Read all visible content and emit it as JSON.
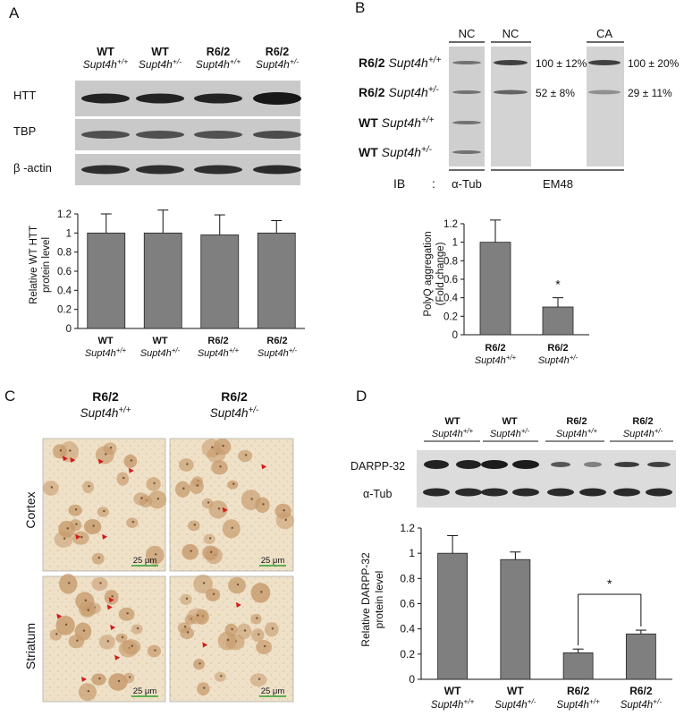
{
  "panel_A": {
    "letter": "A",
    "genotypes": [
      {
        "line": "WT",
        "supt": "Supt4h",
        "sup": "+/+"
      },
      {
        "line": "WT",
        "supt": "Supt4h",
        "sup": "+/-"
      },
      {
        "line": "R6/2",
        "supt": "Supt4h",
        "sup": "+/+"
      },
      {
        "line": "R6/2",
        "supt": "Supt4h",
        "sup": "+/-"
      }
    ],
    "blot_labels": [
      "HTT",
      "TBP",
      "β -actin"
    ],
    "ylabel_1": "Relative WT HTT",
    "ylabel_2": "protein level"
  },
  "panel_B": {
    "letter": "B",
    "lane_headers": [
      "NC",
      "NC",
      "CA"
    ],
    "rows": [
      {
        "line": "R6/2",
        "supt": "Supt4h",
        "sup": "+/+",
        "nc_val": "100 ± 12%",
        "ca_val": "100 ± 20%"
      },
      {
        "line": "R6/2",
        "supt": "Supt4h",
        "sup": "+/-",
        "nc_val": "52 ± 8%",
        "ca_val": "29 ± 11%"
      },
      {
        "line": "WT",
        "supt": "Supt4h",
        "sup": "+/+",
        "nc_val": "",
        "ca_val": ""
      },
      {
        "line": "WT",
        "supt": "Supt4h",
        "sup": "+/-",
        "nc_val": "",
        "ca_val": ""
      }
    ],
    "ib_label": "IB",
    "ib_colon": ":",
    "ib_tub": "α-Tub",
    "ib_em48": "EM48",
    "ylabel_1": "PolyQ aggregation",
    "ylabel_2": "(Fold change)",
    "star": "*"
  },
  "panel_C": {
    "letter": "C",
    "columns": [
      {
        "line": "R6/2",
        "supt": "Supt4h",
        "sup": "+/+"
      },
      {
        "line": "R6/2",
        "supt": "Supt4h",
        "sup": "+/-"
      }
    ],
    "row_labels": [
      "Cortex",
      "Striatum"
    ],
    "scale_label": "25 μm"
  },
  "panel_D": {
    "letter": "D",
    "genotypes": [
      {
        "line": "WT",
        "supt": "Supt4h",
        "sup": "+/+"
      },
      {
        "line": "WT",
        "supt": "Supt4h",
        "sup": "+/-"
      },
      {
        "line": "R6/2",
        "supt": "Supt4h",
        "sup": "+/+"
      },
      {
        "line": "R6/2",
        "supt": "Supt4h",
        "sup": "+/-"
      }
    ],
    "blot_labels": [
      "DARPP-32",
      "α-Tub"
    ],
    "ylabel_1": "Relative DARPP-32",
    "ylabel_2": "protein level",
    "star": "*"
  },
  "chart_data": [
    {
      "id": "A",
      "type": "bar",
      "categories": [
        "WT Supt4h+/+",
        "WT Supt4h+/-",
        "R6/2 Supt4h+/+",
        "R6/2 Supt4h+/-"
      ],
      "values": [
        1.0,
        1.0,
        0.98,
        1.0
      ],
      "errors": [
        0.2,
        0.24,
        0.21,
        0.13
      ],
      "ylim": [
        0,
        1.2
      ],
      "yticks": [
        0,
        0.2,
        0.4,
        0.6,
        0.8,
        1,
        1.2
      ],
      "ylabel": "Relative WT HTT protein level",
      "color": "#7f7f7f",
      "grid": false
    },
    {
      "id": "B",
      "type": "bar",
      "categories": [
        "R6/2 Supt4h+/+",
        "R6/2 Supt4h+/-"
      ],
      "values": [
        1.0,
        0.3
      ],
      "errors": [
        0.24,
        0.1
      ],
      "ylim": [
        0,
        1.2
      ],
      "yticks": [
        0,
        0.2,
        0.4,
        0.6,
        0.8,
        1,
        1.2
      ],
      "ylabel": "PolyQ aggregation (Fold change)",
      "significance": [
        {
          "bar": 1,
          "label": "*"
        }
      ],
      "color": "#7f7f7f",
      "grid": false
    },
    {
      "id": "D",
      "type": "bar",
      "categories": [
        "WT Supt4h+/+",
        "WT Supt4h+/-",
        "R6/2 Supt4h+/+",
        "R6/2 Supt4h+/-"
      ],
      "values": [
        1.0,
        0.95,
        0.21,
        0.36
      ],
      "errors": [
        0.14,
        0.06,
        0.03,
        0.03
      ],
      "ylim": [
        0,
        1.2
      ],
      "yticks": [
        0,
        0.2,
        0.4,
        0.6,
        0.8,
        1,
        1.2
      ],
      "ylabel": "Relative DARPP-32 protein level",
      "significance": [
        {
          "from": 2,
          "to": 3,
          "label": "*"
        }
      ],
      "color": "#7f7f7f",
      "grid": false
    }
  ],
  "colors": {
    "bar": "#7f7f7f",
    "blot_bg": "#c9c9c9",
    "band": "#141414",
    "tissue": "#efe0c6",
    "cell": "#c79b6d",
    "scale": "#2aa02a",
    "arrow": "#d41a1a"
  }
}
